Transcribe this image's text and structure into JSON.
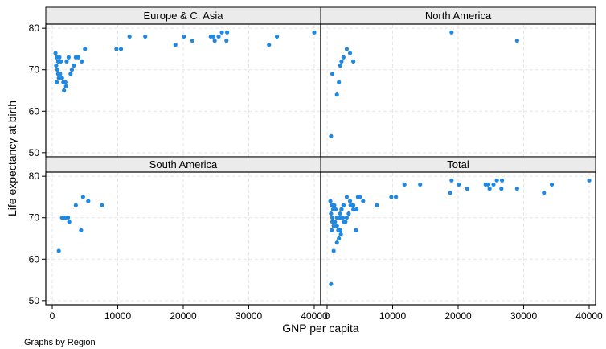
{
  "chart_data": {
    "type": "scatter",
    "xlabel": "GNP per capita",
    "ylabel": "Life expectancy at birth",
    "note": "Graphs by Region",
    "xlim": [
      0,
      40000
    ],
    "ylim": [
      49,
      81
    ],
    "xticks": [
      0,
      10000,
      20000,
      30000,
      40000
    ],
    "xtick_labels": [
      "0",
      "10000",
      "20000",
      "30000",
      "40000"
    ],
    "yticks": [
      50,
      60,
      70,
      80
    ],
    "ytick_labels": [
      "50",
      "60",
      "70",
      "80"
    ],
    "marker_color": "#1e88e5",
    "strip_color": "#ebebeb",
    "grid_color": "#e6e6e6",
    "grid": true,
    "panels": [
      {
        "title": "Europe & C. Asia",
        "x": [
          500,
          700,
          900,
          600,
          800,
          1000,
          1200,
          1100,
          1300,
          1500,
          1700,
          2000,
          2200,
          2500,
          2800,
          3000,
          3300,
          3600,
          4000,
          4500,
          5000,
          1000,
          700,
          900,
          1800,
          2100,
          9800,
          10500,
          11800,
          14200,
          18800,
          20100,
          21400,
          24200,
          24800,
          25400,
          25900,
          26700,
          24600,
          26600,
          33100,
          34300,
          40000
        ],
        "y": [
          74,
          73,
          72,
          71,
          70,
          69,
          69,
          73,
          72,
          68,
          67,
          67,
          72,
          73,
          69,
          70,
          71,
          73,
          73,
          72,
          75,
          68,
          67,
          69,
          65,
          66,
          75,
          75,
          78,
          78,
          76,
          78,
          77,
          78,
          77,
          78,
          79,
          79,
          78,
          77,
          76,
          78,
          79
        ]
      },
      {
        "title": "North America",
        "x": [
          600,
          800,
          1500,
          1800,
          2000,
          2200,
          2500,
          3000,
          3500,
          4000,
          19000,
          29000
        ],
        "y": [
          54,
          69,
          64,
          67,
          71,
          72,
          73,
          75,
          74,
          72,
          79,
          77
        ]
      },
      {
        "title": "South America",
        "x": [
          1000,
          1500,
          1800,
          2000,
          2400,
          2600,
          3600,
          4400,
          4700,
          5500,
          7600
        ],
        "y": [
          62,
          70,
          70,
          70,
          70,
          69,
          73,
          67,
          75,
          74,
          73
        ]
      },
      {
        "title": "Total",
        "x": [
          500,
          700,
          900,
          600,
          800,
          1000,
          1200,
          1100,
          1300,
          1500,
          1700,
          2000,
          2200,
          2500,
          2800,
          3000,
          3300,
          3600,
          4000,
          4500,
          5000,
          1000,
          700,
          900,
          1800,
          2100,
          9800,
          10500,
          11800,
          14200,
          18800,
          20100,
          21400,
          24200,
          24800,
          25400,
          25900,
          26700,
          24600,
          26600,
          33100,
          34300,
          40000,
          600,
          800,
          1500,
          1800,
          2000,
          2200,
          2500,
          3000,
          3500,
          4000,
          19000,
          29000,
          1000,
          1500,
          1800,
          2000,
          2400,
          2600,
          3600,
          4400,
          4700,
          5500,
          7600
        ],
        "y": [
          74,
          73,
          72,
          71,
          70,
          69,
          69,
          73,
          72,
          68,
          67,
          67,
          72,
          73,
          69,
          70,
          71,
          73,
          73,
          72,
          75,
          68,
          67,
          69,
          65,
          66,
          75,
          75,
          78,
          78,
          76,
          78,
          77,
          78,
          77,
          78,
          79,
          79,
          78,
          77,
          76,
          78,
          79,
          54,
          69,
          64,
          67,
          71,
          72,
          73,
          75,
          74,
          72,
          79,
          77,
          62,
          70,
          70,
          70,
          70,
          69,
          73,
          67,
          75,
          74,
          73
        ]
      }
    ]
  }
}
